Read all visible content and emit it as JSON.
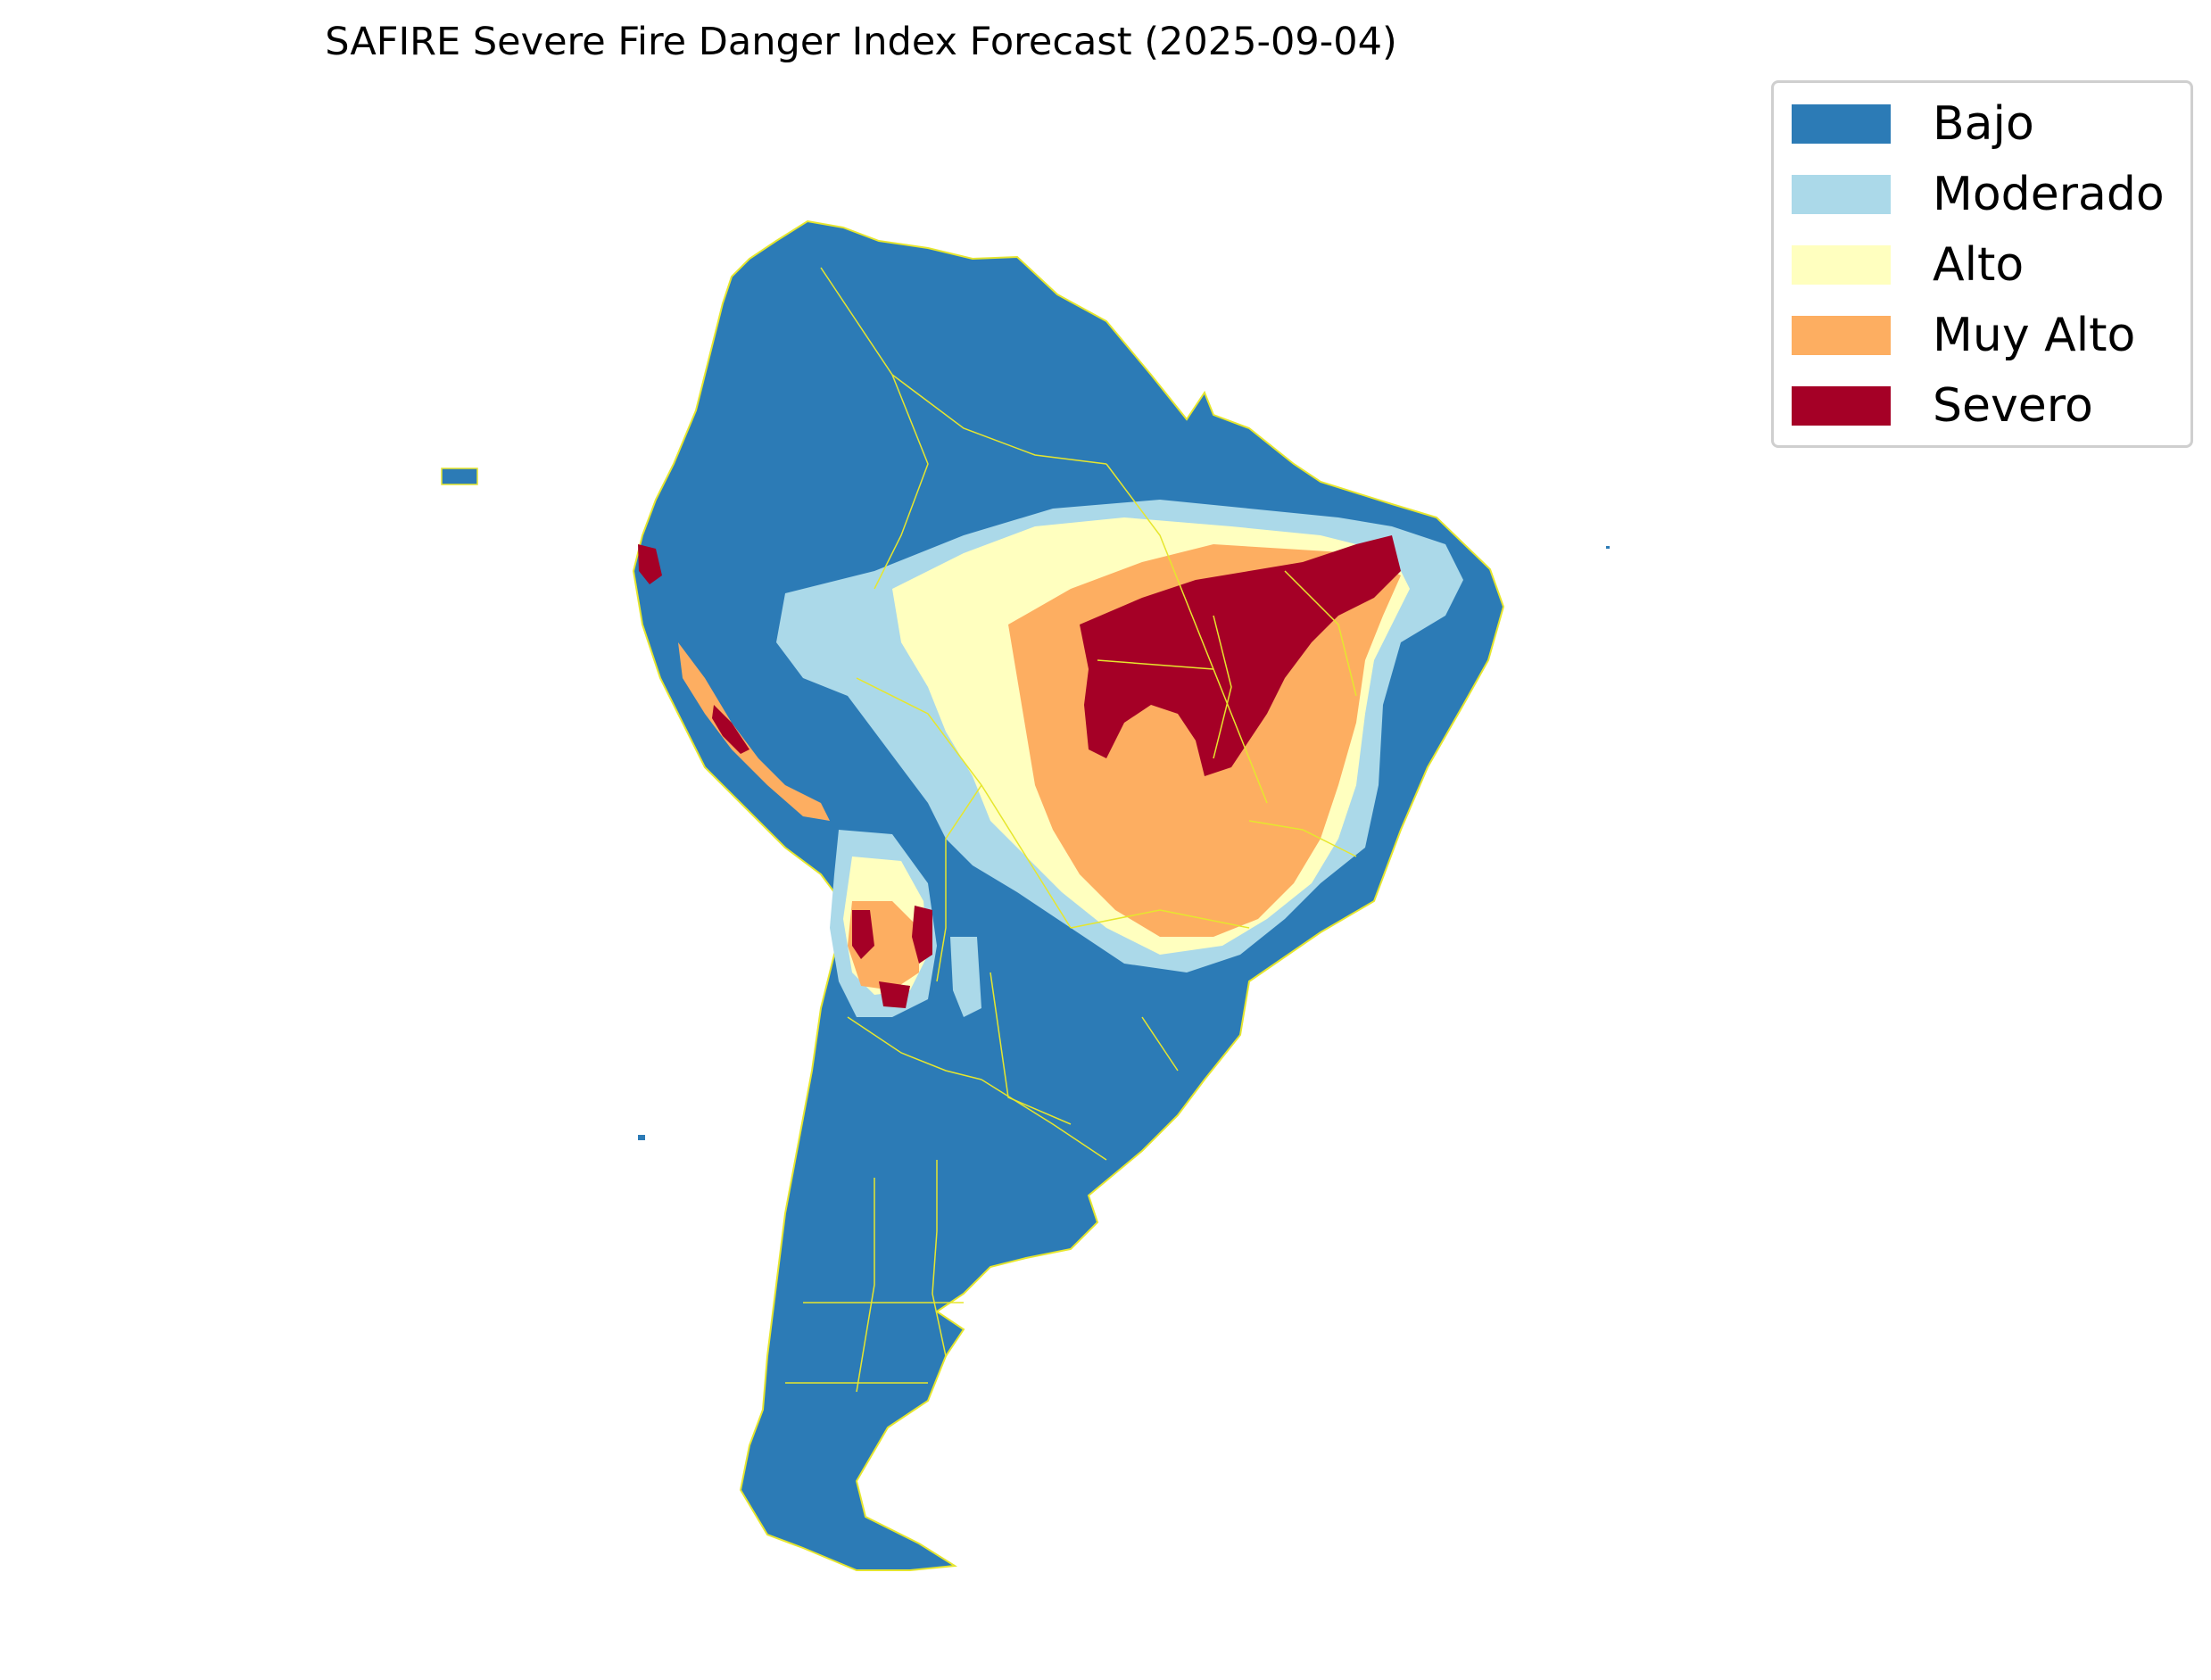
{
  "map": {
    "title": "SAFIRE Severe Fire Danger Index Forecast (2025-09-04)"
  },
  "legend": {
    "items": [
      {
        "label": "Bajo",
        "color": "#2c7bb6"
      },
      {
        "label": "Moderado",
        "color": "#abd9e9"
      },
      {
        "label": "Alto",
        "color": "#ffffbf"
      },
      {
        "label": "Muy Alto",
        "color": "#fdae61"
      },
      {
        "label": "Severo",
        "color": "#a50026"
      }
    ]
  },
  "colors": {
    "border": "#e6e62e",
    "background": "#ffffff"
  }
}
